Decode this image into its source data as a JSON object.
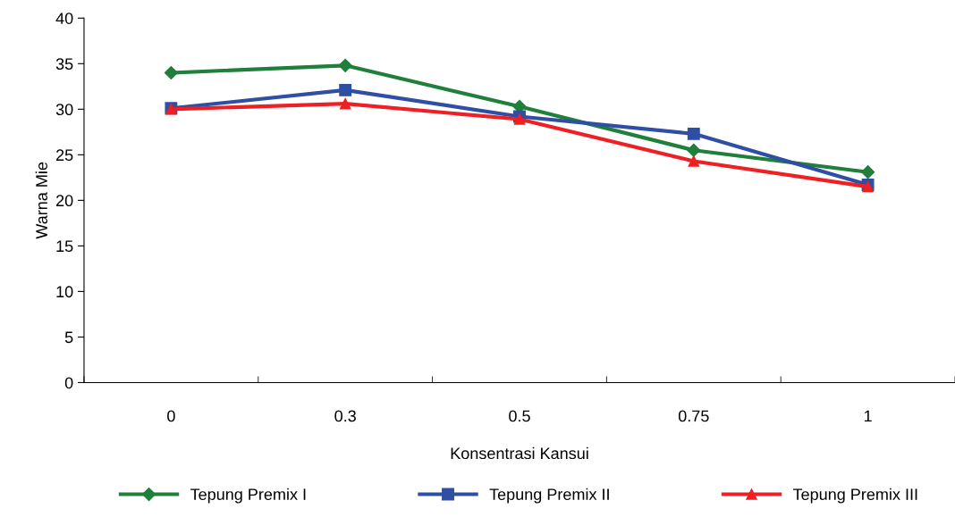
{
  "chart_data": {
    "type": "line",
    "xlabel": "Konsentrasi Kansui",
    "ylabel": "Warna Mie",
    "categories": [
      "0",
      "0.3",
      "0.5",
      "0.75",
      "1"
    ],
    "series": [
      {
        "name": "Tepung Premix I",
        "color": "#1f7f3b",
        "marker": "diamond",
        "values": [
          34.0,
          34.8,
          30.3,
          25.5,
          23.1
        ]
      },
      {
        "name": "Tepung Premix II",
        "color": "#2e4fa3",
        "marker": "square",
        "values": [
          30.1,
          32.1,
          29.2,
          27.3,
          21.7
        ]
      },
      {
        "name": "Tepung Premix III",
        "color": "#ee2024",
        "marker": "triangle",
        "values": [
          30.0,
          30.6,
          28.9,
          24.3,
          21.5
        ]
      }
    ],
    "ylim": [
      0,
      40
    ],
    "yticks": [
      0,
      5,
      10,
      15,
      20,
      25,
      30,
      35,
      40
    ],
    "grid": false,
    "legend": "bottom"
  }
}
